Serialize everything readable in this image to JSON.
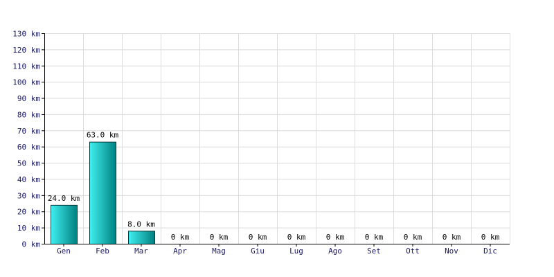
{
  "chart_data": {
    "type": "bar",
    "categories": [
      "Gen",
      "Feb",
      "Mar",
      "Apr",
      "Mag",
      "Giu",
      "Lug",
      "Ago",
      "Set",
      "Ott",
      "Nov",
      "Dic"
    ],
    "values": [
      24.0,
      63.0,
      8.0,
      0,
      0,
      0,
      0,
      0,
      0,
      0,
      0,
      0
    ],
    "data_labels": [
      "24.0 km",
      "63.0 km",
      "8.0 km",
      "0 km",
      "0 km",
      "0 km",
      "0 km",
      "0 km",
      "0 km",
      "0 km",
      "0 km",
      "0 km"
    ],
    "y_tick_values": [
      0,
      10,
      20,
      30,
      40,
      50,
      60,
      70,
      80,
      90,
      100,
      110,
      120,
      130
    ],
    "y_tick_labels": [
      "0 km",
      "10 km",
      "20 km",
      "30 km",
      "40 km",
      "50 km",
      "60 km",
      "70 km",
      "80 km",
      "90 km",
      "100 km",
      "110 km",
      "120 km",
      "130 km"
    ],
    "ylim": [
      0,
      130
    ],
    "title": "",
    "xlabel": "",
    "ylabel": "",
    "grid": true,
    "legend": "none",
    "colors": {
      "bar_light": "#40f0f0",
      "bar_dark": "#008080",
      "bar_edge": "#003333",
      "grid": "#dcdcdc",
      "axis": "#000000"
    }
  }
}
